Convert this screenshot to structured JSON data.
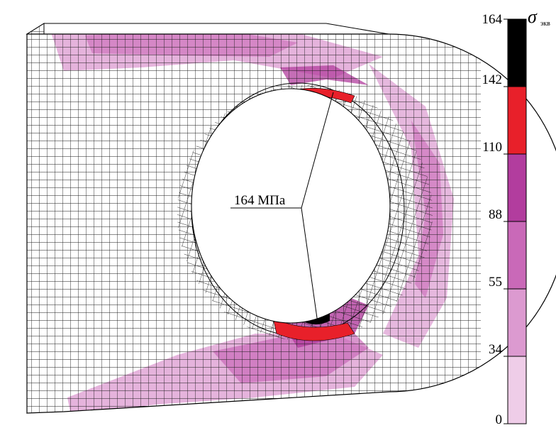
{
  "annotation": {
    "label": "164 МПа"
  },
  "legend": {
    "symbol": "σ",
    "subscript": "экв",
    "ticks": [
      "164",
      "142",
      "110",
      "88",
      "55",
      "34",
      "0"
    ],
    "colors": [
      "#000000",
      "#e8202a",
      "#b23d9e",
      "#c969b8",
      "#dc9ad0",
      "#efcde8",
      "#ffffff"
    ]
  }
}
